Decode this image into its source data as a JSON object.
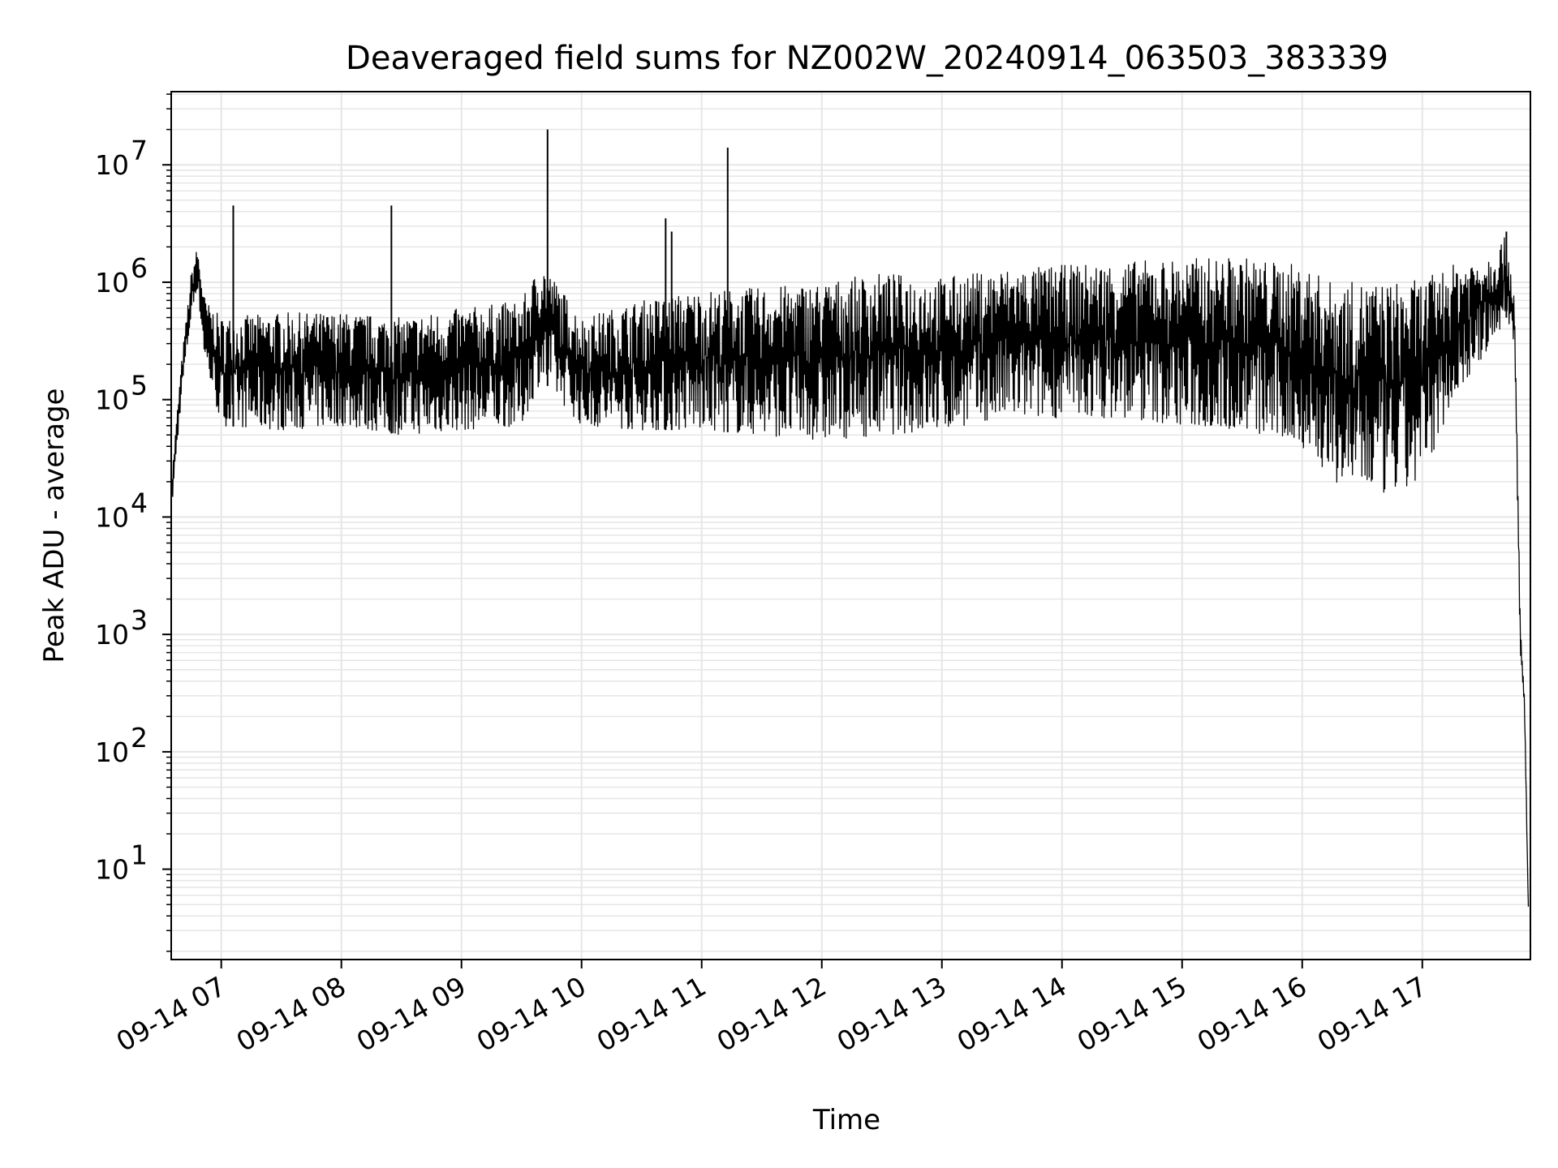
{
  "chart_data": {
    "type": "line",
    "title": "Deaveraged field sums for NZ002W_20240914_063503_383339",
    "xlabel": "Time",
    "ylabel": "Peak ADU - average",
    "yscale": "log",
    "grid": true,
    "legend": "none",
    "line_color": "#000000",
    "grid_color": "#e6e6e6",
    "xlim": [
      "2024-09-14 06:35",
      "2024-09-14 17:54"
    ],
    "ylim": [
      1.7,
      42000000.0
    ],
    "x_ticks": [
      {
        "t": "2024-09-14 07:00",
        "label": "09-14 07"
      },
      {
        "t": "2024-09-14 08:00",
        "label": "09-14 08"
      },
      {
        "t": "2024-09-14 09:00",
        "label": "09-14 09"
      },
      {
        "t": "2024-09-14 10:00",
        "label": "09-14 10"
      },
      {
        "t": "2024-09-14 11:00",
        "label": "09-14 11"
      },
      {
        "t": "2024-09-14 12:00",
        "label": "09-14 12"
      },
      {
        "t": "2024-09-14 13:00",
        "label": "09-14 13"
      },
      {
        "t": "2024-09-14 14:00",
        "label": "09-14 14"
      },
      {
        "t": "2024-09-14 15:00",
        "label": "09-14 15"
      },
      {
        "t": "2024-09-14 16:00",
        "label": "09-14 16"
      },
      {
        "t": "2024-09-14 17:00",
        "label": "09-14 17"
      }
    ],
    "y_ticks": [
      {
        "v": 10,
        "base": "10",
        "exp": "1"
      },
      {
        "v": 100,
        "base": "10",
        "exp": "2"
      },
      {
        "v": 1000,
        "base": "10",
        "exp": "3"
      },
      {
        "v": 10000,
        "base": "10",
        "exp": "4"
      },
      {
        "v": 100000,
        "base": "10",
        "exp": "5"
      },
      {
        "v": 1000000,
        "base": "10",
        "exp": "6"
      },
      {
        "v": 10000000,
        "base": "10",
        "exp": "7"
      }
    ],
    "series": [
      {
        "envelope": [
          {
            "t": "2024-09-14 06:35",
            "low": 10000,
            "high": 20000
          },
          {
            "t": "2024-09-14 06:40",
            "low": 100000,
            "high": 200000
          },
          {
            "t": "2024-09-14 06:45",
            "low": 500000,
            "high": 1200000
          },
          {
            "t": "2024-09-14 06:48",
            "low": 900000,
            "high": 2000000
          },
          {
            "t": "2024-09-14 06:52",
            "low": 200000,
            "high": 700000
          },
          {
            "t": "2024-09-14 07:00",
            "low": 60000,
            "high": 500000
          },
          {
            "t": "2024-09-14 07:30",
            "low": 55000,
            "high": 550000
          },
          {
            "t": "2024-09-14 08:00",
            "low": 60000,
            "high": 550000
          },
          {
            "t": "2024-09-14 08:30",
            "low": 50000,
            "high": 500000
          },
          {
            "t": "2024-09-14 09:00",
            "low": 55000,
            "high": 600000
          },
          {
            "t": "2024-09-14 09:30",
            "low": 60000,
            "high": 700000
          },
          {
            "t": "2024-09-14 09:40",
            "low": 150000,
            "high": 1500000
          },
          {
            "t": "2024-09-14 10:00",
            "low": 60000,
            "high": 500000
          },
          {
            "t": "2024-09-14 10:30",
            "low": 55000,
            "high": 700000
          },
          {
            "t": "2024-09-14 11:00",
            "low": 55000,
            "high": 850000
          },
          {
            "t": "2024-09-14 11:30",
            "low": 50000,
            "high": 900000
          },
          {
            "t": "2024-09-14 12:00",
            "low": 45000,
            "high": 1000000
          },
          {
            "t": "2024-09-14 12:30",
            "low": 50000,
            "high": 1200000
          },
          {
            "t": "2024-09-14 13:00",
            "low": 55000,
            "high": 1100000
          },
          {
            "t": "2024-09-14 13:30",
            "low": 70000,
            "high": 1300000
          },
          {
            "t": "2024-09-14 14:00",
            "low": 70000,
            "high": 1400000
          },
          {
            "t": "2024-09-14 14:30",
            "low": 70000,
            "high": 1500000
          },
          {
            "t": "2024-09-14 15:00",
            "low": 60000,
            "high": 1600000
          },
          {
            "t": "2024-09-14 15:30",
            "low": 55000,
            "high": 1650000
          },
          {
            "t": "2024-09-14 16:00",
            "low": 40000,
            "high": 1400000
          },
          {
            "t": "2024-09-14 16:15",
            "low": 20000,
            "high": 1000000
          },
          {
            "t": "2024-09-14 16:45",
            "low": 15000,
            "high": 1000000
          },
          {
            "t": "2024-09-14 17:00",
            "low": 20000,
            "high": 1050000
          },
          {
            "t": "2024-09-14 17:15",
            "low": 100000,
            "high": 1400000
          },
          {
            "t": "2024-09-14 17:35",
            "low": 300000,
            "high": 1800000
          },
          {
            "t": "2024-09-14 17:42",
            "low": 500000,
            "high": 2500000
          },
          {
            "t": "2024-09-14 17:46",
            "low": 300000,
            "high": 800000
          },
          {
            "t": "2024-09-14 17:49",
            "low": 600,
            "high": 1200
          },
          {
            "t": "2024-09-14 17:51",
            "low": 250,
            "high": 300
          },
          {
            "t": "2024-09-14 17:53",
            "low": 4,
            "high": 5
          }
        ],
        "spikes": [
          {
            "t": "2024-09-14 07:06",
            "v": 4500000
          },
          {
            "t": "2024-09-14 08:25",
            "v": 4500000
          },
          {
            "t": "2024-09-14 09:43",
            "v": 20000000
          },
          {
            "t": "2024-09-14 10:42",
            "v": 3500000
          },
          {
            "t": "2024-09-14 10:45",
            "v": 2700000
          },
          {
            "t": "2024-09-14 11:13",
            "v": 14000000
          },
          {
            "t": "2024-09-14 17:42",
            "v": 2700000
          }
        ]
      }
    ]
  }
}
